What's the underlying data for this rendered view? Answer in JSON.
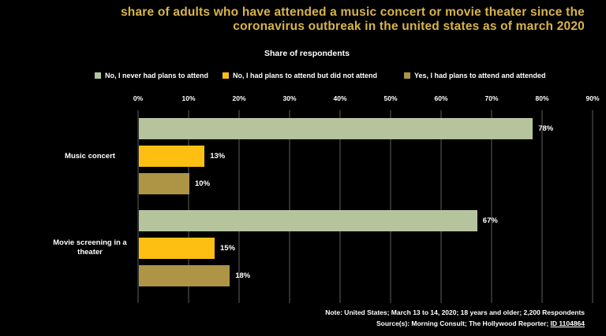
{
  "title": {
    "line1": "share of adults who have attended a music concert or movie theater since the",
    "line2": "coronavirus outbreak in the united states as of march 2020"
  },
  "axis_title": "Share of respondents",
  "chart_data": {
    "type": "bar",
    "orientation": "horizontal",
    "title": "share of adults who have attended a music concert or movie theater since the coronavirus outbreak in the united states as of march 2020",
    "xlabel": "Share of respondents",
    "xlim": [
      0,
      90
    ],
    "x_ticks": [
      "0%",
      "10%",
      "20%",
      "30%",
      "40%",
      "50%",
      "60%",
      "70%",
      "80%",
      "90%"
    ],
    "grid": "vertical",
    "legend_position": "top",
    "value_suffix": "%",
    "categories": [
      "Music concert",
      "Movie screening in a theater"
    ],
    "series": [
      {
        "name": "No, I never had plans to attend",
        "color": "#b6c49e",
        "values": [
          78,
          67
        ]
      },
      {
        "name": "No, I had plans to attend but did not attend",
        "color": "#fdc012",
        "values": [
          13,
          15
        ]
      },
      {
        "name": "Yes, I had plans to attend and attended",
        "color": "#ad9545",
        "values": [
          10,
          18
        ]
      }
    ]
  },
  "note": {
    "line1": "Note: United States; March 13 to 14, 2020; 18 years and older; 2,200 Respondents",
    "source_prefix": "Source(s): Morning Consult; The Hollywood Reporter; ",
    "source_link": "ID 1104864"
  },
  "colors": {
    "background": "#000000",
    "title": "#d8b54a",
    "text": "#ffffff",
    "gridline": "#2f2f2f",
    "series_never": "#b6c49e",
    "series_planned_not_attended": "#fdc012",
    "series_attended": "#ad9545"
  }
}
